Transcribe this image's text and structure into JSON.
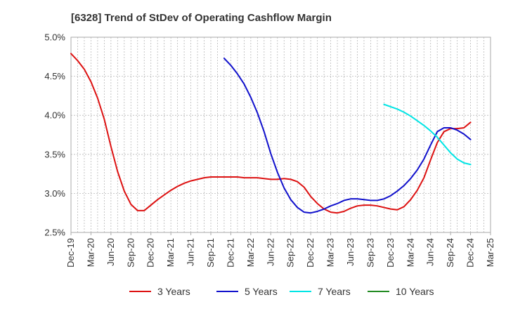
{
  "chart_data": {
    "type": "line",
    "title": "[6328]  Trend of StDev of Operating Cashflow Margin",
    "xlabel": "",
    "ylabel": "",
    "x_ticks": [
      "Dec-19",
      "Mar-20",
      "Jun-20",
      "Sep-20",
      "Dec-20",
      "Mar-21",
      "Jun-21",
      "Sep-21",
      "Dec-21",
      "Mar-22",
      "Jun-22",
      "Sep-22",
      "Dec-22",
      "Mar-23",
      "Jun-23",
      "Sep-23",
      "Dec-23",
      "Mar-24",
      "Jun-24",
      "Sep-24",
      "Dec-24",
      "Mar-25"
    ],
    "y_ticks": [
      "2.5%",
      "3.0%",
      "3.5%",
      "4.0%",
      "4.5%",
      "5.0%"
    ],
    "ylim": [
      2.5,
      5.0
    ],
    "grid": true,
    "legend_position": "bottom",
    "series": [
      {
        "name": "3 Years",
        "color": "#dd1111",
        "points": [
          [
            "2019-12",
            4.79
          ],
          [
            "2020-01",
            4.7
          ],
          [
            "2020-02",
            4.59
          ],
          [
            "2020-03",
            4.43
          ],
          [
            "2020-04",
            4.22
          ],
          [
            "2020-05",
            3.95
          ],
          [
            "2020-06",
            3.6
          ],
          [
            "2020-07",
            3.28
          ],
          [
            "2020-08",
            3.03
          ],
          [
            "2020-09",
            2.86
          ],
          [
            "2020-10",
            2.78
          ],
          [
            "2020-11",
            2.78
          ],
          [
            "2020-12",
            2.85
          ],
          [
            "2021-01",
            2.92
          ],
          [
            "2021-02",
            2.98
          ],
          [
            "2021-03",
            3.04
          ],
          [
            "2021-04",
            3.09
          ],
          [
            "2021-05",
            3.13
          ],
          [
            "2021-06",
            3.16
          ],
          [
            "2021-07",
            3.18
          ],
          [
            "2021-08",
            3.2
          ],
          [
            "2021-09",
            3.21
          ],
          [
            "2021-10",
            3.21
          ],
          [
            "2021-11",
            3.21
          ],
          [
            "2021-12",
            3.21
          ],
          [
            "2022-01",
            3.21
          ],
          [
            "2022-02",
            3.2
          ],
          [
            "2022-03",
            3.2
          ],
          [
            "2022-04",
            3.2
          ],
          [
            "2022-05",
            3.19
          ],
          [
            "2022-06",
            3.18
          ],
          [
            "2022-07",
            3.18
          ],
          [
            "2022-08",
            3.19
          ],
          [
            "2022-09",
            3.18
          ],
          [
            "2022-10",
            3.15
          ],
          [
            "2022-11",
            3.08
          ],
          [
            "2022-12",
            2.96
          ],
          [
            "2023-01",
            2.87
          ],
          [
            "2023-02",
            2.8
          ],
          [
            "2023-03",
            2.76
          ],
          [
            "2023-04",
            2.75
          ],
          [
            "2023-05",
            2.77
          ],
          [
            "2023-06",
            2.81
          ],
          [
            "2023-07",
            2.84
          ],
          [
            "2023-08",
            2.85
          ],
          [
            "2023-09",
            2.85
          ],
          [
            "2023-10",
            2.84
          ],
          [
            "2023-11",
            2.82
          ],
          [
            "2023-12",
            2.8
          ],
          [
            "2024-01",
            2.79
          ],
          [
            "2024-02",
            2.83
          ],
          [
            "2024-03",
            2.92
          ],
          [
            "2024-04",
            3.04
          ],
          [
            "2024-05",
            3.2
          ],
          [
            "2024-06",
            3.43
          ],
          [
            "2024-07",
            3.65
          ],
          [
            "2024-08",
            3.79
          ],
          [
            "2024-09",
            3.83
          ],
          [
            "2024-10",
            3.83
          ],
          [
            "2024-11",
            3.84
          ],
          [
            "2024-12",
            3.91
          ]
        ]
      },
      {
        "name": "5 Years",
        "color": "#1111cc",
        "points": [
          [
            "2021-11",
            4.73
          ],
          [
            "2021-12",
            4.64
          ],
          [
            "2022-01",
            4.53
          ],
          [
            "2022-02",
            4.4
          ],
          [
            "2022-03",
            4.23
          ],
          [
            "2022-04",
            4.03
          ],
          [
            "2022-05",
            3.79
          ],
          [
            "2022-06",
            3.51
          ],
          [
            "2022-07",
            3.27
          ],
          [
            "2022-08",
            3.07
          ],
          [
            "2022-09",
            2.92
          ],
          [
            "2022-10",
            2.82
          ],
          [
            "2022-11",
            2.76
          ],
          [
            "2022-12",
            2.75
          ],
          [
            "2023-01",
            2.77
          ],
          [
            "2023-02",
            2.8
          ],
          [
            "2023-03",
            2.84
          ],
          [
            "2023-04",
            2.87
          ],
          [
            "2023-05",
            2.91
          ],
          [
            "2023-06",
            2.93
          ],
          [
            "2023-07",
            2.93
          ],
          [
            "2023-08",
            2.92
          ],
          [
            "2023-09",
            2.91
          ],
          [
            "2023-10",
            2.91
          ],
          [
            "2023-11",
            2.93
          ],
          [
            "2023-12",
            2.97
          ],
          [
            "2024-01",
            3.03
          ],
          [
            "2024-02",
            3.1
          ],
          [
            "2024-03",
            3.19
          ],
          [
            "2024-04",
            3.3
          ],
          [
            "2024-05",
            3.44
          ],
          [
            "2024-06",
            3.62
          ],
          [
            "2024-07",
            3.79
          ],
          [
            "2024-08",
            3.84
          ],
          [
            "2024-09",
            3.84
          ],
          [
            "2024-10",
            3.81
          ],
          [
            "2024-11",
            3.76
          ],
          [
            "2024-12",
            3.69
          ]
        ]
      },
      {
        "name": "7 Years",
        "color": "#00e5e5",
        "points": [
          [
            "2023-11",
            4.14
          ],
          [
            "2023-12",
            4.11
          ],
          [
            "2024-01",
            4.08
          ],
          [
            "2024-02",
            4.04
          ],
          [
            "2024-03",
            3.99
          ],
          [
            "2024-04",
            3.93
          ],
          [
            "2024-05",
            3.87
          ],
          [
            "2024-06",
            3.8
          ],
          [
            "2024-07",
            3.72
          ],
          [
            "2024-08",
            3.62
          ],
          [
            "2024-09",
            3.52
          ],
          [
            "2024-10",
            3.44
          ],
          [
            "2024-11",
            3.39
          ],
          [
            "2024-12",
            3.37
          ]
        ]
      },
      {
        "name": "10 Years",
        "color": "#228b22",
        "points": []
      }
    ]
  }
}
